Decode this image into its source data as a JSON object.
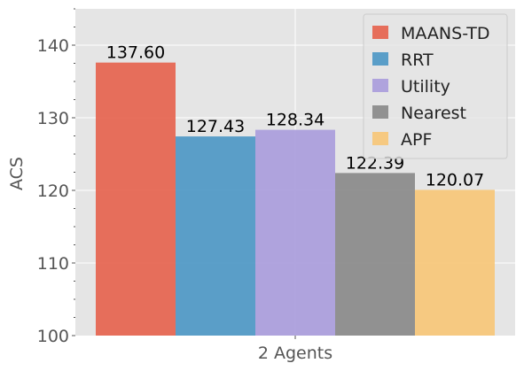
{
  "chart_data": {
    "type": "bar",
    "title": "",
    "xlabel": "",
    "ylabel": "ACS",
    "categories": [
      "2 Agents"
    ],
    "ylim": [
      100,
      145
    ],
    "yticks": [
      100,
      110,
      120,
      130,
      140
    ],
    "grid": true,
    "legend_position": "top-right",
    "series": [
      {
        "name": "MAANS-TD",
        "values": [
          137.6
        ],
        "label": "137.60",
        "color": "#E5604B"
      },
      {
        "name": "RRT",
        "values": [
          127.43
        ],
        "label": "127.43",
        "color": "#4A96C4"
      },
      {
        "name": "Utility",
        "values": [
          128.34
        ],
        "label": "128.34",
        "color": "#A89BDC"
      },
      {
        "name": "Nearest",
        "values": [
          122.39
        ],
        "label": "122.39",
        "color": "#878787"
      },
      {
        "name": "APF",
        "values": [
          120.07
        ],
        "label": "120.07",
        "color": "#F7C576"
      }
    ],
    "plot_background": "#E5E5E5",
    "grid_color": "#FFFFFF"
  }
}
